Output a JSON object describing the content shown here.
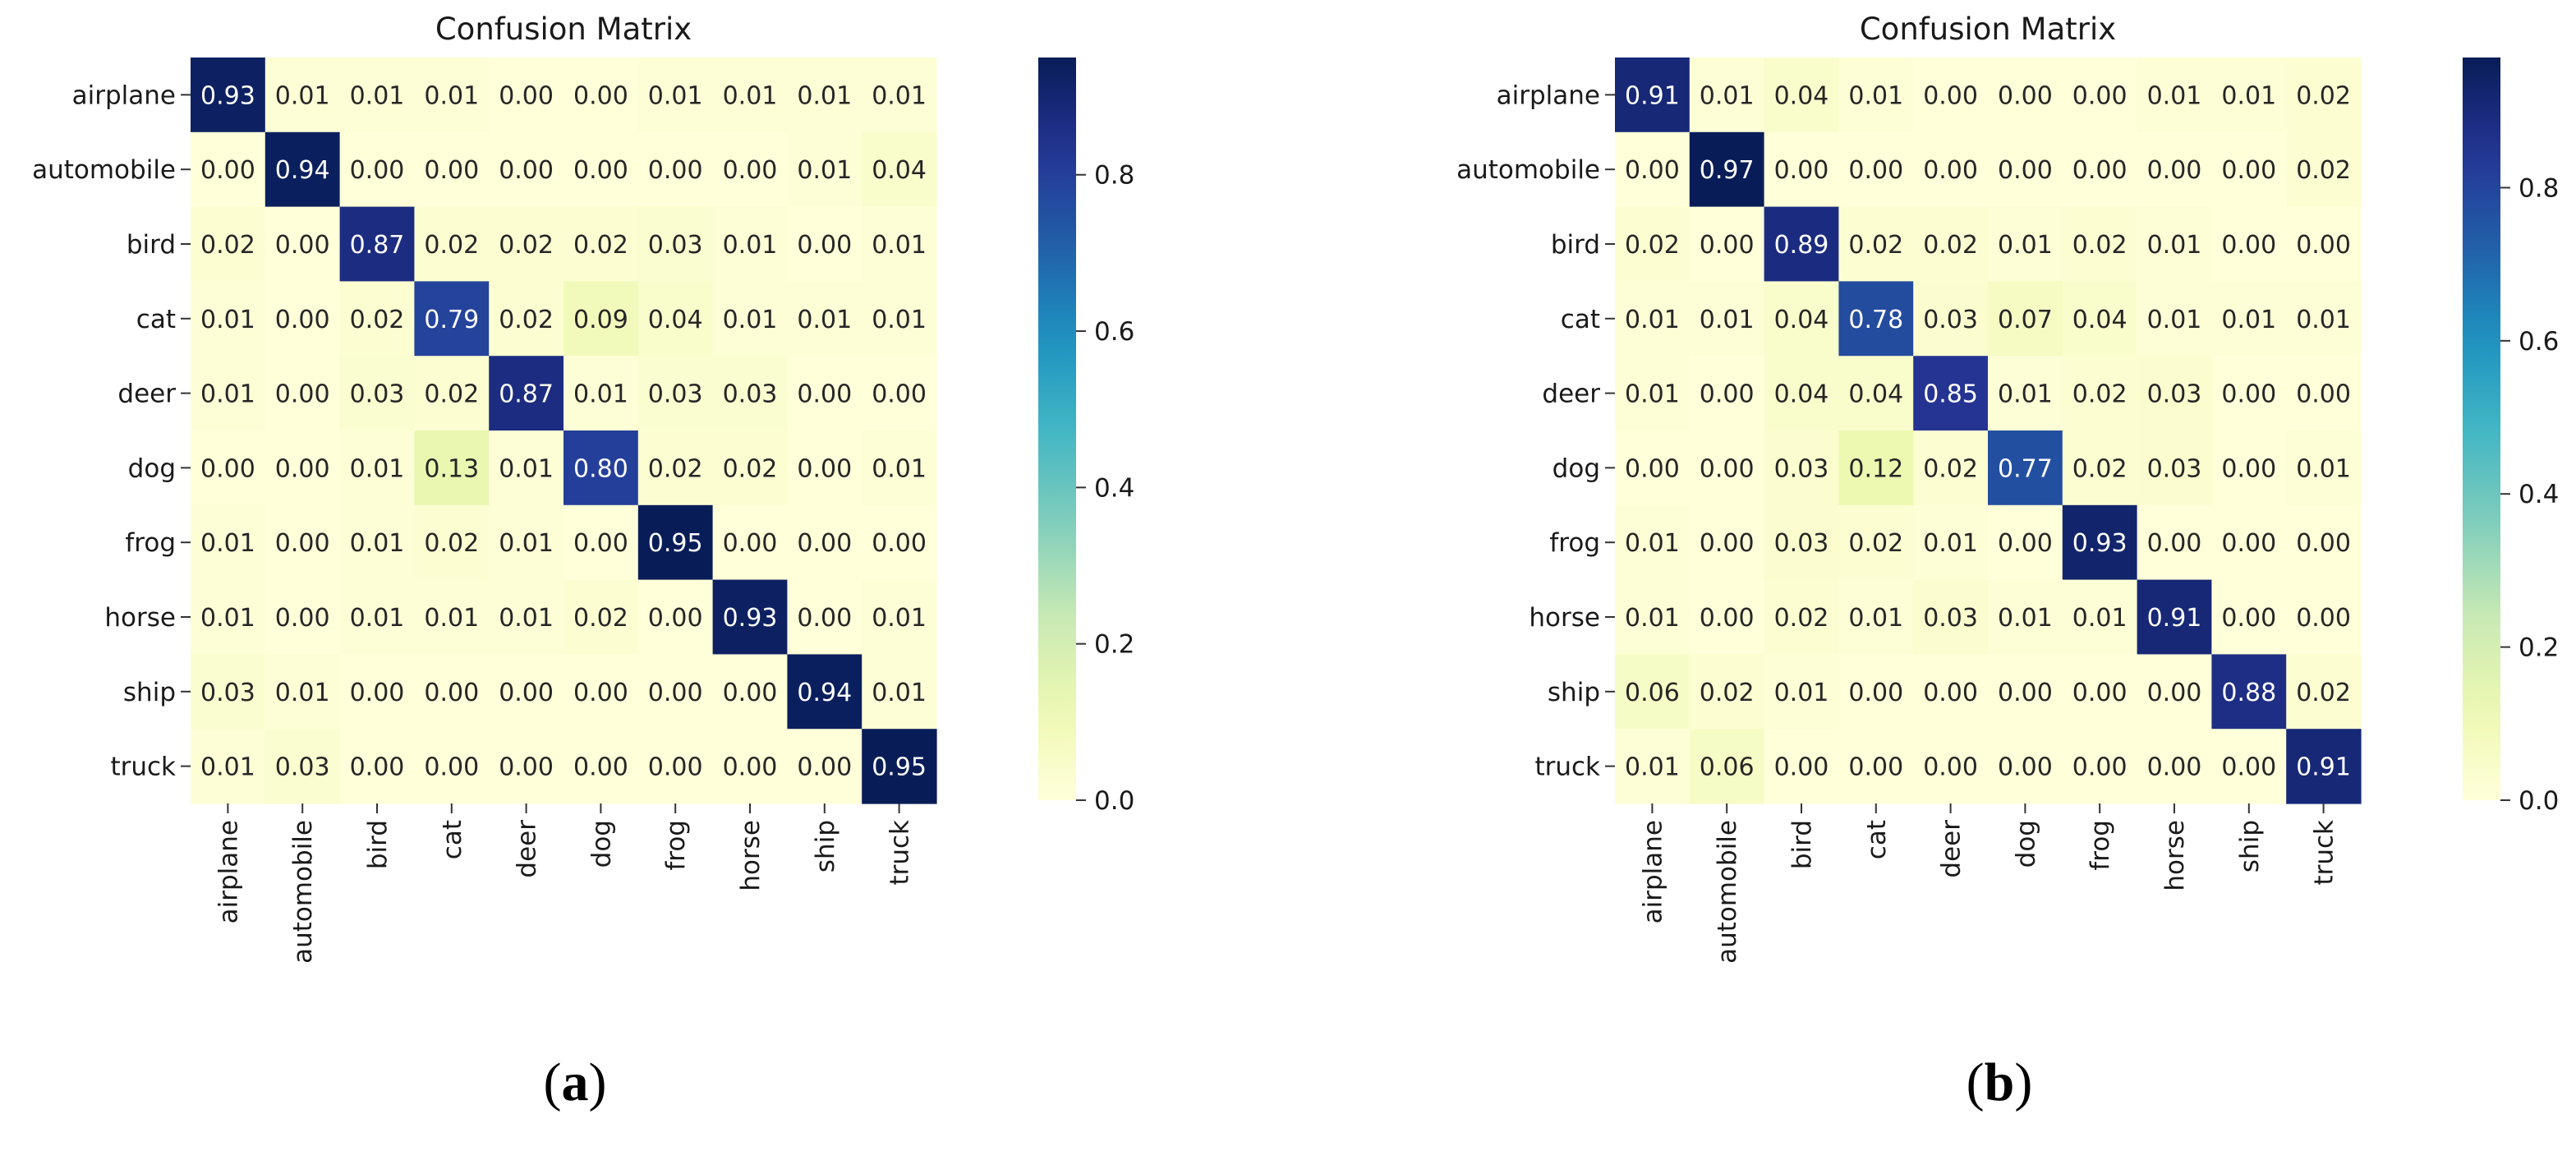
{
  "figure": {
    "panels": [
      {
        "paren_open": "(",
        "letter": "a",
        "paren_close": ")"
      },
      {
        "paren_open": "(",
        "letter": "b",
        "paren_close": ")"
      }
    ]
  },
  "chart_data": [
    {
      "type": "heatmap",
      "title": "Confusion Matrix",
      "xlabel": "",
      "ylabel": "",
      "x_categories": [
        "airplane",
        "automobile",
        "bird",
        "cat",
        "deer",
        "dog",
        "frog",
        "horse",
        "ship",
        "truck"
      ],
      "y_categories": [
        "airplane",
        "automobile",
        "bird",
        "cat",
        "deer",
        "dog",
        "frog",
        "horse",
        "ship",
        "truck"
      ],
      "values": [
        [
          0.93,
          0.01,
          0.01,
          0.01,
          0.0,
          0.0,
          0.01,
          0.01,
          0.01,
          0.01
        ],
        [
          0.0,
          0.94,
          0.0,
          0.0,
          0.0,
          0.0,
          0.0,
          0.0,
          0.01,
          0.04
        ],
        [
          0.02,
          0.0,
          0.87,
          0.02,
          0.02,
          0.02,
          0.03,
          0.01,
          0.0,
          0.01
        ],
        [
          0.01,
          0.0,
          0.02,
          0.79,
          0.02,
          0.09,
          0.04,
          0.01,
          0.01,
          0.01
        ],
        [
          0.01,
          0.0,
          0.03,
          0.02,
          0.87,
          0.01,
          0.03,
          0.03,
          0.0,
          0.0
        ],
        [
          0.0,
          0.0,
          0.01,
          0.13,
          0.01,
          0.8,
          0.02,
          0.02,
          0.0,
          0.01
        ],
        [
          0.01,
          0.0,
          0.01,
          0.02,
          0.01,
          0.0,
          0.95,
          0.0,
          0.0,
          0.0
        ],
        [
          0.01,
          0.0,
          0.01,
          0.01,
          0.01,
          0.02,
          0.0,
          0.93,
          0.0,
          0.01
        ],
        [
          0.03,
          0.01,
          0.0,
          0.0,
          0.0,
          0.0,
          0.0,
          0.0,
          0.94,
          0.01
        ],
        [
          0.01,
          0.03,
          0.0,
          0.0,
          0.0,
          0.0,
          0.0,
          0.0,
          0.0,
          0.95
        ]
      ],
      "colormap": "YlGnBu",
      "colorbar": {
        "range": [
          0,
          0.95
        ],
        "ticks": [
          "0.0",
          "0.2",
          "0.4",
          "0.6",
          "0.8"
        ]
      }
    },
    {
      "type": "heatmap",
      "title": "Confusion Matrix",
      "xlabel": "",
      "ylabel": "",
      "x_categories": [
        "airplane",
        "automobile",
        "bird",
        "cat",
        "deer",
        "dog",
        "frog",
        "horse",
        "ship",
        "truck"
      ],
      "y_categories": [
        "airplane",
        "automobile",
        "bird",
        "cat",
        "deer",
        "dog",
        "frog",
        "horse",
        "ship",
        "truck"
      ],
      "values": [
        [
          0.91,
          0.01,
          0.04,
          0.01,
          0.0,
          0.0,
          0.0,
          0.01,
          0.01,
          0.02
        ],
        [
          0.0,
          0.97,
          0.0,
          0.0,
          0.0,
          0.0,
          0.0,
          0.0,
          0.0,
          0.02
        ],
        [
          0.02,
          0.0,
          0.89,
          0.02,
          0.02,
          0.01,
          0.02,
          0.01,
          0.0,
          0.0
        ],
        [
          0.01,
          0.01,
          0.04,
          0.78,
          0.03,
          0.07,
          0.04,
          0.01,
          0.01,
          0.01
        ],
        [
          0.01,
          0.0,
          0.04,
          0.04,
          0.85,
          0.01,
          0.02,
          0.03,
          0.0,
          0.0
        ],
        [
          0.0,
          0.0,
          0.03,
          0.12,
          0.02,
          0.77,
          0.02,
          0.03,
          0.0,
          0.01
        ],
        [
          0.01,
          0.0,
          0.03,
          0.02,
          0.01,
          0.0,
          0.93,
          0.0,
          0.0,
          0.0
        ],
        [
          0.01,
          0.0,
          0.02,
          0.01,
          0.03,
          0.01,
          0.01,
          0.91,
          0.0,
          0.0
        ],
        [
          0.06,
          0.02,
          0.01,
          0.0,
          0.0,
          0.0,
          0.0,
          0.0,
          0.88,
          0.02
        ],
        [
          0.01,
          0.06,
          0.0,
          0.0,
          0.0,
          0.0,
          0.0,
          0.0,
          0.0,
          0.91
        ]
      ],
      "colormap": "YlGnBu",
      "colorbar": {
        "range": [
          0,
          0.97
        ],
        "ticks": [
          "0.0",
          "0.2",
          "0.4",
          "0.6",
          "0.8"
        ]
      }
    }
  ]
}
